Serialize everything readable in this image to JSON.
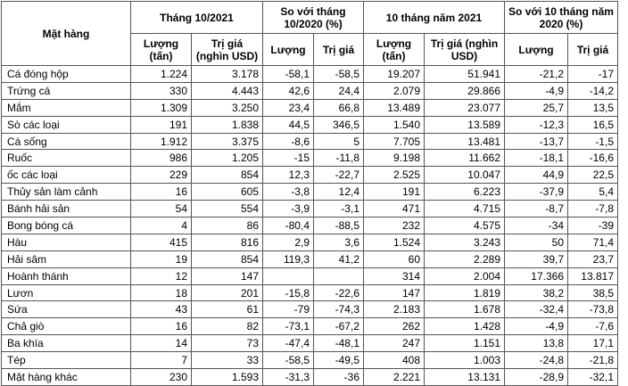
{
  "headers": {
    "item": "Mặt hàng",
    "group1": "Tháng 10/2021",
    "group2": "So với tháng 10/2020 (%)",
    "group3": "10 tháng năm 2021",
    "group4": "So với 10 tháng năm 2020 (%)",
    "qty_t": "Lượng (tấn)",
    "val_usd": "Trị giá (nghìn USD)",
    "qty": "Lượng",
    "val": "Trị giá"
  },
  "rows": [
    [
      "Cá đóng hộp",
      "1.224",
      "3.178",
      "-58,1",
      "-58,5",
      "19.207",
      "51.941",
      "-21,2",
      "-17"
    ],
    [
      "Trứng cá",
      "330",
      "4.443",
      "42,6",
      "24,4",
      "2.079",
      "29.866",
      "-4,9",
      "-14,2"
    ],
    [
      "Mắm",
      "1.309",
      "3.250",
      "23,4",
      "66,8",
      "13.489",
      "23.077",
      "25,7",
      "13,5"
    ],
    [
      "Sò các loại",
      "191",
      "1.838",
      "44,5",
      "346,5",
      "1.540",
      "13.589",
      "-12,3",
      "16,5"
    ],
    [
      "Cá sống",
      "1.912",
      "3.375",
      "-8,6",
      "5",
      "7.705",
      "13.481",
      "-13,7",
      "-1,5"
    ],
    [
      "Ruốc",
      "986",
      "1.205",
      "-15",
      "-11,8",
      "9.198",
      "11.662",
      "-18,1",
      "-16,6"
    ],
    [
      "ốc các loại",
      "229",
      "854",
      "12,3",
      "-22,7",
      "2.525",
      "10.047",
      "44,9",
      "22,5"
    ],
    [
      "Thủy sản làm cảnh",
      "16",
      "605",
      "-3,8",
      "12,4",
      "191",
      "6.223",
      "-37,9",
      "5,4"
    ],
    [
      "Bánh hải sản",
      "54",
      "554",
      "-3,9",
      "-3,1",
      "471",
      "4.715",
      "-8,7",
      "-7,8"
    ],
    [
      "Bong bóng cá",
      "4",
      "86",
      "-80,4",
      "-88,5",
      "232",
      "4.575",
      "-34",
      "-39"
    ],
    [
      "Hàu",
      "415",
      "816",
      "2,9",
      "3,6",
      "1.524",
      "3.243",
      "50",
      "71,4"
    ],
    [
      "Hải sâm",
      "19",
      "854",
      "119,3",
      "41,2",
      "60",
      "2.289",
      "39,7",
      "23,7"
    ],
    [
      "Hoành thánh",
      "12",
      "147",
      "",
      "",
      "314",
      "2.004",
      "17.366",
      "13.817"
    ],
    [
      "Lươn",
      "18",
      "201",
      "-15,8",
      "-22,6",
      "147",
      "1.819",
      "38,2",
      "38,5"
    ],
    [
      "Sứa",
      "43",
      "61",
      "-79",
      "-74,3",
      "2.183",
      "1.678",
      "-32,4",
      "-73,8"
    ],
    [
      "Chả giò",
      "16",
      "82",
      "-73,1",
      "-67,2",
      "262",
      "1.428",
      "-4,9",
      "-7,6"
    ],
    [
      "Ba khía",
      "14",
      "73",
      "-47,4",
      "-48,1",
      "247",
      "1.151",
      "13,8",
      "17,1"
    ],
    [
      "Tép",
      "7",
      "33",
      "-58,5",
      "-49,5",
      "408",
      "1.003",
      "-24,8",
      "-21,8"
    ],
    [
      "Mặt hàng khác",
      "230",
      "1.593",
      "-31,3",
      "-36",
      "2.221",
      "13.131",
      "-28,9",
      "-32,1"
    ]
  ]
}
